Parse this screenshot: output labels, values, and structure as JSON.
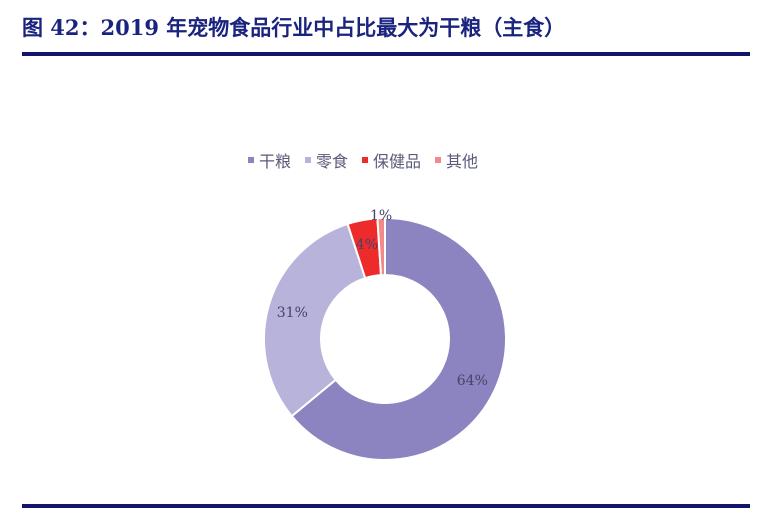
{
  "title": "图 42：2019 年宠物食品行业中占比最大为干粮（主食）",
  "chart_data": {
    "type": "pie",
    "donut": true,
    "title": "图 42：2019 年宠物食品行业中占比最大为干粮（主食）",
    "legend_position": "top",
    "categories": [
      "干粮",
      "零食",
      "保健品",
      "其他"
    ],
    "values": [
      64,
      31,
      4,
      1
    ],
    "labels": [
      "64%",
      "31%",
      "4%",
      "1%"
    ],
    "colors": [
      "#8b84c0",
      "#b7b3da",
      "#ee2b2b",
      "#f28a8a"
    ]
  }
}
